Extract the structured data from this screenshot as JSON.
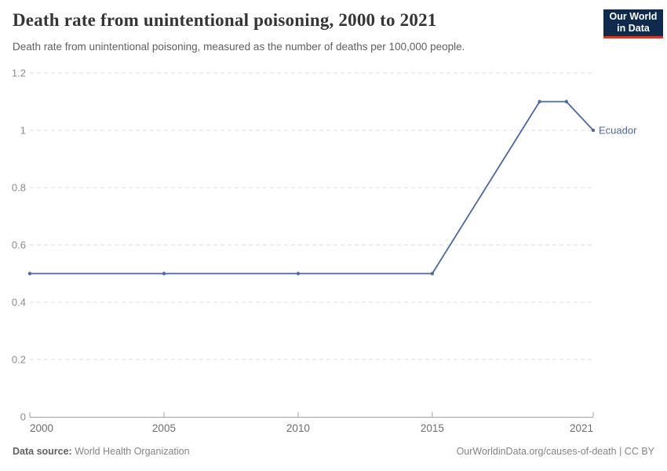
{
  "header": {
    "title": "Death rate from unintentional poisoning, 2000 to 2021",
    "subtitle": "Death rate from unintentional poisoning, measured as the number of deaths per 100,000 people."
  },
  "logo": {
    "line1": "Our World",
    "line2": "in Data",
    "bg_color": "#102a4d",
    "accent_color": "#cf3a30"
  },
  "chart_data": {
    "type": "line",
    "title": "Death rate from unintentional poisoning, 2000 to 2021",
    "xlabel": "",
    "ylabel": "",
    "x_range": [
      2000,
      2021
    ],
    "y_range": [
      0,
      1.2
    ],
    "x_ticks": [
      2000,
      2005,
      2010,
      2015,
      2021
    ],
    "x_tick_labels": [
      "2000",
      "2005",
      "2010",
      "2015",
      "2021"
    ],
    "y_ticks": [
      0,
      0.2,
      0.4,
      0.6,
      0.8,
      1,
      1.2
    ],
    "y_tick_labels": [
      "0",
      "0.2",
      "0.4",
      "0.6",
      "0.8",
      "1",
      "1.2"
    ],
    "grid": "horizontal-dashed",
    "legend_position": "end-of-line-label",
    "series": [
      {
        "name": "Ecuador",
        "color": "#4C6A9C",
        "x": [
          2000,
          2005,
          2010,
          2015,
          2019,
          2020,
          2021
        ],
        "values": [
          0.5,
          0.5,
          0.5,
          0.5,
          1.1,
          1.1,
          1.0
        ]
      }
    ]
  },
  "footer": {
    "source_label": "Data source:",
    "source_value": "World Health Organization",
    "credit": "OurWorldinData.org/causes-of-death | CC BY"
  },
  "colors": {
    "line": "#4C6A9C",
    "grid": "#dcdcdc",
    "axis": "#a3a3a3",
    "y_tick_label": "#8c8c8c",
    "x_tick_label": "#6e6e6e",
    "title": "#353535",
    "subtitle": "#5f5f5f"
  }
}
